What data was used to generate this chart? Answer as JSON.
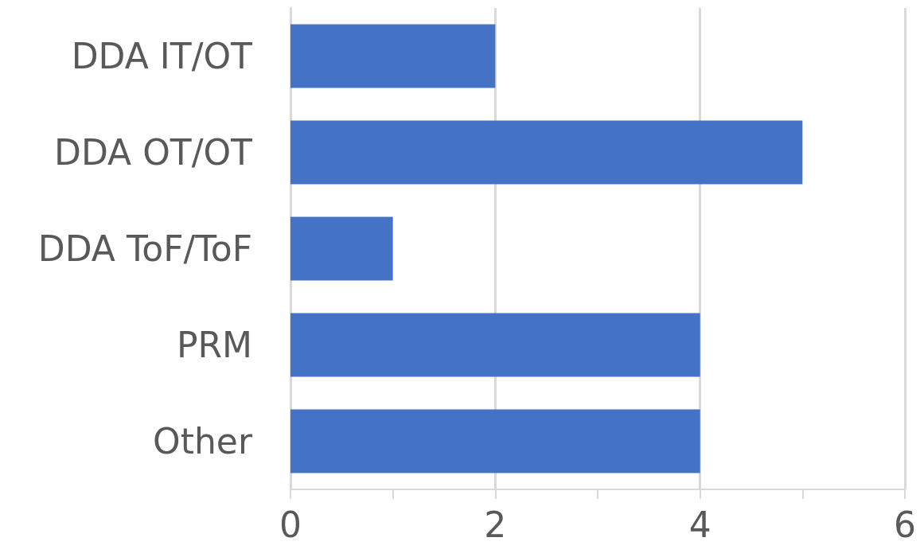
{
  "chart_data": {
    "type": "bar",
    "orientation": "horizontal",
    "categories": [
      "DDA IT/OT",
      "DDA OT/OT",
      "DDA ToF/ToF",
      "PRM",
      "Other"
    ],
    "values": [
      2,
      5,
      1,
      4,
      4
    ],
    "color": "#4472c4",
    "xlim": [
      0,
      6
    ],
    "xticks": [
      0,
      {
        "value": 1,
        "label": null
      },
      2,
      {
        "value": 3,
        "label": null
      },
      4,
      {
        "value": 5,
        "label": null
      },
      6
    ],
    "grid": "x"
  }
}
